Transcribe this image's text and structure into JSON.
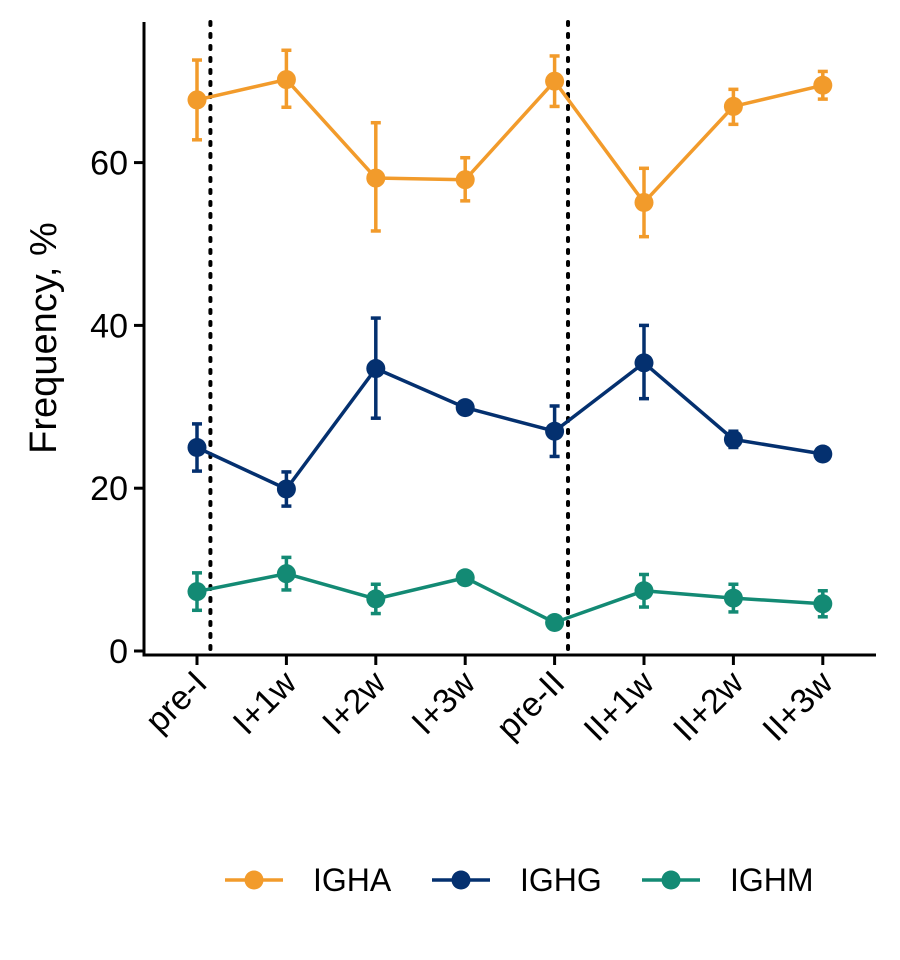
{
  "chart_data": {
    "type": "line",
    "title": "",
    "xlabel": "",
    "ylabel": "Frequency, %",
    "categories": [
      "pre-I",
      "I+1w",
      "I+2w",
      "I+3w",
      "pre-II",
      "II+1w",
      "II+2w",
      "II+3w"
    ],
    "ylim": [
      -0.5,
      77
    ],
    "yticks": [
      0,
      20,
      40,
      60
    ],
    "vlines": [
      0.15,
      4.15
    ],
    "grid": false,
    "legend_position": "bottom",
    "series": [
      {
        "name": "IGHA",
        "color": "#F29B2B",
        "values": [
          67.7,
          70.2,
          58.1,
          57.9,
          70.0,
          55.1,
          66.9,
          69.5
        ],
        "err_low": [
          62.8,
          66.8,
          51.6,
          55.3,
          66.9,
          50.9,
          64.7,
          67.8
        ],
        "err_high": [
          72.6,
          73.8,
          64.9,
          60.6,
          73.1,
          59.3,
          69.0,
          71.2
        ]
      },
      {
        "name": "IGHG",
        "color": "#04306F",
        "values": [
          25.0,
          19.9,
          34.7,
          29.9,
          27.0,
          35.4,
          26.0,
          24.2
        ],
        "err_low": [
          22.1,
          17.8,
          28.6,
          29.5,
          23.9,
          31.0,
          25.0,
          23.7
        ],
        "err_high": [
          27.9,
          22.0,
          40.9,
          30.3,
          30.1,
          40.0,
          27.0,
          24.7
        ]
      },
      {
        "name": "IGHM",
        "color": "#138A74",
        "values": [
          7.3,
          9.5,
          6.4,
          9.0,
          3.5,
          7.4,
          6.5,
          5.8
        ],
        "err_low": [
          5.0,
          7.5,
          4.6,
          8.6,
          3.0,
          5.4,
          4.8,
          4.2
        ],
        "err_high": [
          9.6,
          11.5,
          8.2,
          9.4,
          4.0,
          9.4,
          8.2,
          7.4
        ]
      }
    ]
  }
}
